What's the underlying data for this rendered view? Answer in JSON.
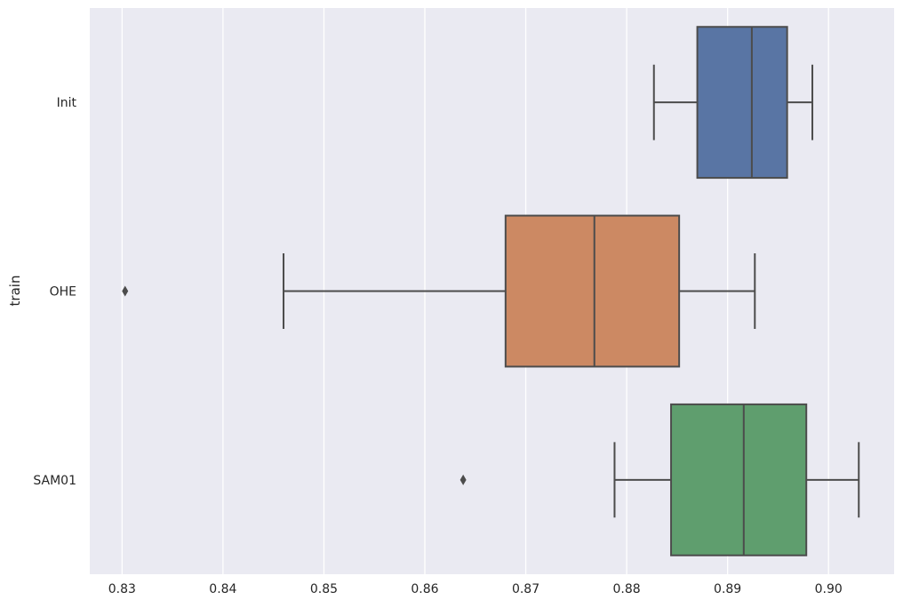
{
  "chart_data": {
    "type": "boxplot",
    "orientation": "horizontal",
    "title": "",
    "xlabel": "",
    "ylabel": "train",
    "xlim": [
      0.8268,
      0.9065
    ],
    "xticks": [
      "0.83",
      "0.84",
      "0.85",
      "0.86",
      "0.87",
      "0.88",
      "0.89",
      "0.90"
    ],
    "grid": true,
    "legend": "none",
    "categories": [
      "Init",
      "OHE",
      "SAM01"
    ],
    "colors": {
      "Init": "#5975a4",
      "OHE": "#cc8963",
      "SAM01": "#5f9e6e"
    },
    "boxes": [
      {
        "label": "Init",
        "whisker_low": 0.8827,
        "q1": 0.887,
        "median": 0.8924,
        "q3": 0.8959,
        "whisker_high": 0.8984,
        "outliers": []
      },
      {
        "label": "OHE",
        "whisker_low": 0.846,
        "q1": 0.868,
        "median": 0.8768,
        "q3": 0.8852,
        "whisker_high": 0.8927,
        "outliers": [
          0.8303
        ]
      },
      {
        "label": "SAM01",
        "whisker_low": 0.8788,
        "q1": 0.8844,
        "median": 0.8916,
        "q3": 0.8978,
        "whisker_high": 0.903,
        "outliers": [
          0.8638
        ]
      }
    ]
  }
}
